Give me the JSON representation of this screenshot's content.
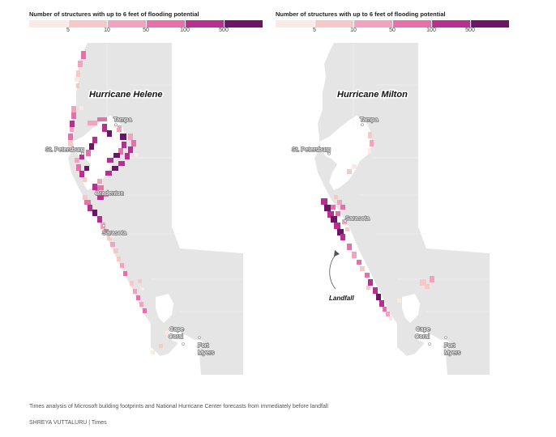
{
  "legend": {
    "title": "Number of structures with up to 6 feet of flooding potential",
    "ticks": [
      "5",
      "10",
      "50",
      "100",
      "500"
    ],
    "colors": [
      "#fbe9e6",
      "#f6c9c9",
      "#f2a3bd",
      "#e471a9",
      "#b8308f",
      "#6e1468"
    ]
  },
  "panels": [
    {
      "storm": "Hurricane Helene",
      "cities": [
        {
          "name": "Tampa"
        },
        {
          "name": "St. Petersburg"
        },
        {
          "name": "Bradenton"
        },
        {
          "name": "Sarasota"
        },
        {
          "name": "Cape Coral",
          "lines": [
            "Cape",
            "Coral"
          ]
        },
        {
          "name": "Fort Myers",
          "lines": [
            "Fort",
            "Myers"
          ]
        }
      ]
    },
    {
      "storm": "Hurricane Milton",
      "cities": [
        {
          "name": "Tampa"
        },
        {
          "name": "St. Petersburg"
        },
        {
          "name": "Sarasota"
        },
        {
          "name": "Cape Coral",
          "lines": [
            "Cape",
            "Coral"
          ]
        },
        {
          "name": "Fort Myers",
          "lines": [
            "Fort",
            "Myers"
          ]
        }
      ],
      "annotation": "Landfall"
    }
  ],
  "footer": {
    "note": "Times analysis of Microsoft building footprints and National Hurricane Center forecasts from immediately before landfall",
    "credit": "SHREYA VUTTALURU | Times"
  }
}
